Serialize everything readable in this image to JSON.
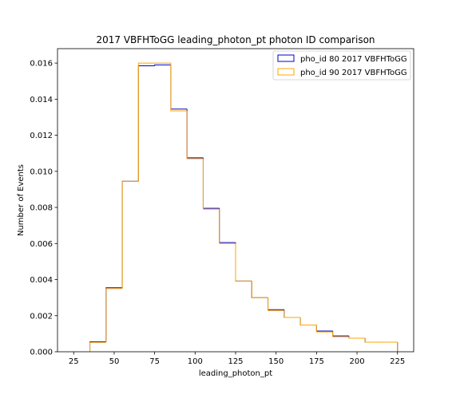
{
  "chart_data": {
    "type": "histogram",
    "title": "2017 VBFHToGG leading_photon_pt photon ID comparison",
    "xlabel": "leading_photon_pt",
    "ylabel": "Number of Events",
    "xlim": [
      15,
      235
    ],
    "ylim": [
      0,
      0.0168
    ],
    "x_ticks": [
      25,
      50,
      75,
      100,
      125,
      150,
      175,
      200,
      225
    ],
    "y_ticks": [
      0.0,
      0.002,
      0.004,
      0.006,
      0.008,
      0.01,
      0.012,
      0.014,
      0.016
    ],
    "grid": false,
    "legend_position": "top-right",
    "bin_edges": [
      25,
      35,
      45,
      55,
      65,
      75,
      85,
      95,
      105,
      115,
      125,
      135,
      145,
      155,
      165,
      175,
      185,
      195,
      205,
      215,
      225
    ],
    "series": [
      {
        "name": "pho_id 80 2017 VBFHToGG",
        "color": "#0000cc",
        "values": [
          0,
          0.00055,
          0.00355,
          0.00945,
          0.01585,
          0.0159,
          0.01345,
          0.01075,
          0.00795,
          0.00605,
          0.00392,
          0.003,
          0.00233,
          0.0019,
          0.00148,
          0.00115,
          0.00088,
          0.00075,
          0.00053,
          0.00053
        ]
      },
      {
        "name": "pho_id 90 2017 VBFHToGG",
        "color": "#ffa500",
        "values": [
          0,
          0.00052,
          0.0035,
          0.00945,
          0.016,
          0.016,
          0.01335,
          0.0107,
          0.0079,
          0.006,
          0.00392,
          0.003,
          0.00228,
          0.0019,
          0.00148,
          0.0011,
          0.00083,
          0.00075,
          0.00053,
          0.00053
        ]
      }
    ]
  }
}
